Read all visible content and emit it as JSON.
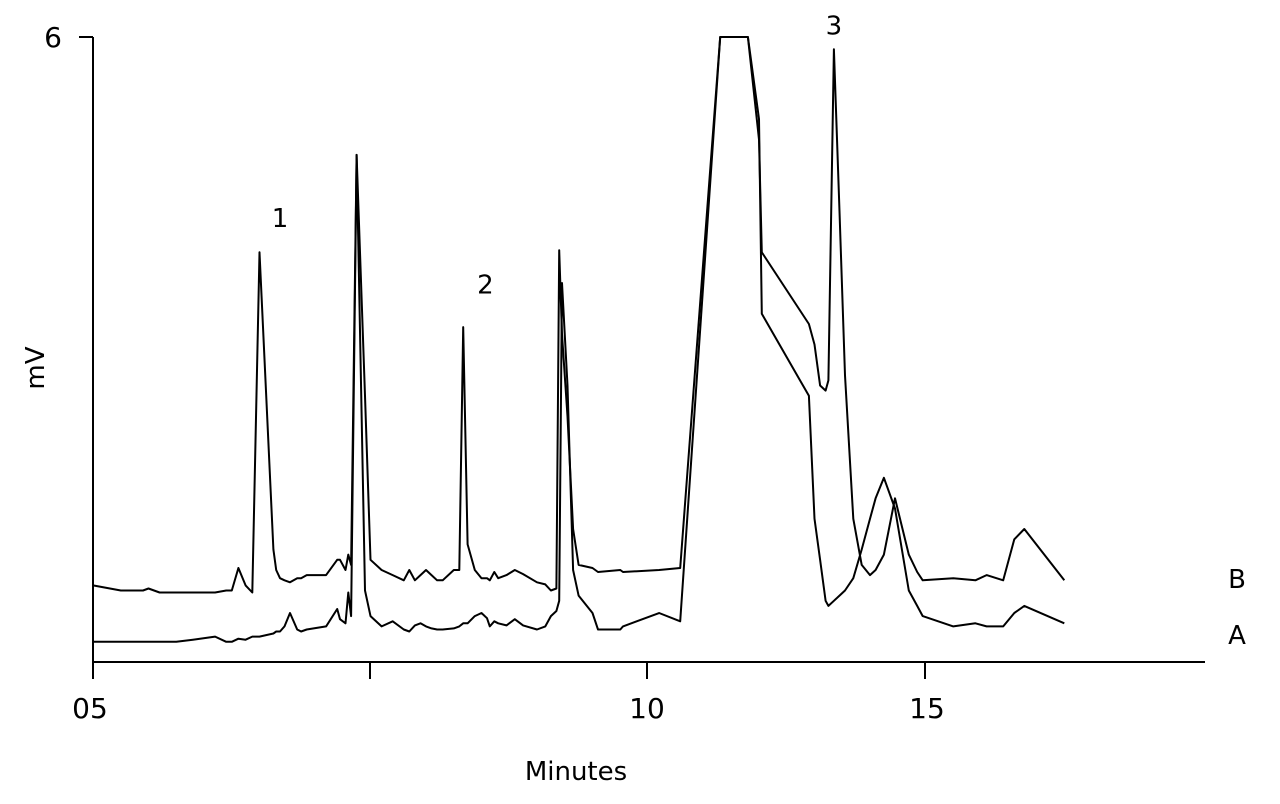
{
  "chart_data": {
    "type": "line",
    "title": "",
    "xlabel": "Minutes",
    "ylabel": "mV",
    "xlim": [
      5,
      19.9
    ],
    "ylim": [
      0,
      6
    ],
    "y_ticks": [
      {
        "value": 6,
        "label": "6"
      }
    ],
    "x_ticks": [
      {
        "value": 5,
        "label": "05"
      },
      {
        "value": 10,
        "label": "10"
      },
      {
        "value": 15,
        "label": "15"
      }
    ],
    "x_minor_ticks": [
      7.5
    ],
    "grid": false,
    "legend": "none",
    "peak_labels": [
      {
        "label": "1",
        "x": 8.37,
        "y": 4.0
      },
      {
        "label": "2",
        "x": 12.07,
        "y": 3.35
      },
      {
        "label": "3",
        "x": 18.35,
        "y": 5.88
      }
    ],
    "series": [
      {
        "name": "B",
        "x": [
          5.0,
          5.5,
          5.65,
          5.9,
          6.0,
          6.2,
          6.5,
          6.8,
          7.2,
          7.4,
          7.5,
          7.62,
          7.75,
          7.87,
          8.0,
          8.25,
          8.3,
          8.37,
          8.45,
          8.55,
          8.68,
          8.75,
          8.85,
          9.2,
          9.4,
          9.45,
          9.55,
          9.6,
          9.65,
          9.75,
          9.9,
          10.0,
          10.2,
          10.4,
          10.6,
          10.7,
          10.8,
          10.9,
          11.0,
          11.1,
          11.2,
          11.3,
          11.5,
          11.6,
          11.67,
          11.75,
          11.88,
          12.0,
          12.1,
          12.15,
          12.23,
          12.3,
          12.45,
          12.6,
          12.75,
          13.0,
          13.15,
          13.25,
          13.35,
          13.4,
          13.45,
          13.55,
          13.65,
          13.75,
          14.0,
          14.1,
          14.5,
          14.55,
          15.2,
          15.58,
          16.3,
          16.8,
          17.0,
          17.05,
          17.9,
          18.0,
          18.1,
          18.2,
          18.25,
          18.35,
          18.45,
          18.55,
          18.7,
          18.85,
          19.0,
          19.1,
          19.25,
          19.45,
          19.7,
          19.85,
          19.95,
          20.5,
          20.9,
          21.1,
          21.4,
          21.6,
          21.78,
          22.5
        ],
        "y": [
          0.65,
          0.6,
          0.6,
          0.6,
          0.62,
          0.58,
          0.58,
          0.58,
          0.58,
          0.6,
          0.6,
          0.82,
          0.65,
          0.58,
          3.9,
          1.0,
          0.8,
          0.72,
          0.7,
          0.68,
          0.72,
          0.72,
          0.75,
          0.75,
          0.9,
          0.9,
          0.8,
          0.95,
          0.85,
          4.85,
          2.5,
          0.9,
          0.8,
          0.75,
          0.7,
          0.8,
          0.7,
          0.75,
          0.8,
          0.75,
          0.7,
          0.7,
          0.8,
          0.8,
          3.17,
          1.05,
          0.8,
          0.72,
          0.72,
          0.7,
          0.78,
          0.72,
          0.75,
          0.8,
          0.76,
          0.68,
          0.66,
          0.6,
          0.62,
          3.92,
          3.1,
          2.3,
          1.2,
          0.85,
          0.82,
          0.78,
          0.8,
          0.78,
          0.8,
          0.82,
          6.0,
          6.0,
          5.0,
          3.9,
          3.2,
          3.0,
          2.6,
          2.55,
          2.65,
          5.88,
          4.3,
          2.7,
          1.3,
          0.85,
          0.75,
          0.8,
          0.95,
          1.5,
          0.95,
          0.78,
          0.7,
          0.72,
          0.7,
          0.75,
          0.7,
          1.1,
          1.2,
          0.7
        ]
      },
      {
        "name": "A",
        "x": [
          5.0,
          5.5,
          5.65,
          5.9,
          6.0,
          6.2,
          6.5,
          6.8,
          7.2,
          7.4,
          7.5,
          7.62,
          7.75,
          7.87,
          8.0,
          8.25,
          8.3,
          8.37,
          8.45,
          8.55,
          8.68,
          8.75,
          8.85,
          9.2,
          9.4,
          9.45,
          9.55,
          9.6,
          9.65,
          9.75,
          9.9,
          10.0,
          10.2,
          10.4,
          10.6,
          10.7,
          10.8,
          10.9,
          11.0,
          11.1,
          11.2,
          11.3,
          11.5,
          11.6,
          11.67,
          11.75,
          11.88,
          12.0,
          12.1,
          12.15,
          12.23,
          12.3,
          12.45,
          12.6,
          12.75,
          13.0,
          13.15,
          13.25,
          13.35,
          13.4,
          13.45,
          13.55,
          13.65,
          13.75,
          14.0,
          14.1,
          14.5,
          14.55,
          15.2,
          15.58,
          16.3,
          16.8,
          17.0,
          17.05,
          17.9,
          18.0,
          18.1,
          18.2,
          18.25,
          18.35,
          18.45,
          18.55,
          18.7,
          18.85,
          19.0,
          19.1,
          19.25,
          19.45,
          19.7,
          19.85,
          19.95,
          20.5,
          20.9,
          21.1,
          21.4,
          21.6,
          21.78,
          22.5
        ],
        "y": [
          0.1,
          0.1,
          0.1,
          0.1,
          0.1,
          0.1,
          0.1,
          0.12,
          0.15,
          0.1,
          0.1,
          0.13,
          0.12,
          0.15,
          0.15,
          0.18,
          0.2,
          0.2,
          0.25,
          0.38,
          0.22,
          0.2,
          0.22,
          0.25,
          0.42,
          0.32,
          0.28,
          0.58,
          0.35,
          4.85,
          0.6,
          0.35,
          0.25,
          0.3,
          0.22,
          0.2,
          0.26,
          0.28,
          0.25,
          0.23,
          0.22,
          0.22,
          0.23,
          0.25,
          0.28,
          0.28,
          0.35,
          0.38,
          0.33,
          0.25,
          0.3,
          0.28,
          0.26,
          0.32,
          0.26,
          0.22,
          0.25,
          0.35,
          0.4,
          0.5,
          3.6,
          2.6,
          0.8,
          0.55,
          0.38,
          0.22,
          0.22,
          0.25,
          0.38,
          0.3,
          6.0,
          6.0,
          5.2,
          3.3,
          2.5,
          1.3,
          0.9,
          0.5,
          0.45,
          0.5,
          0.55,
          0.6,
          0.72,
          1.0,
          1.3,
          1.5,
          1.7,
          1.4,
          0.6,
          0.45,
          0.35,
          0.25,
          0.28,
          0.25,
          0.25,
          0.38,
          0.45,
          0.28
        ]
      }
    ]
  }
}
